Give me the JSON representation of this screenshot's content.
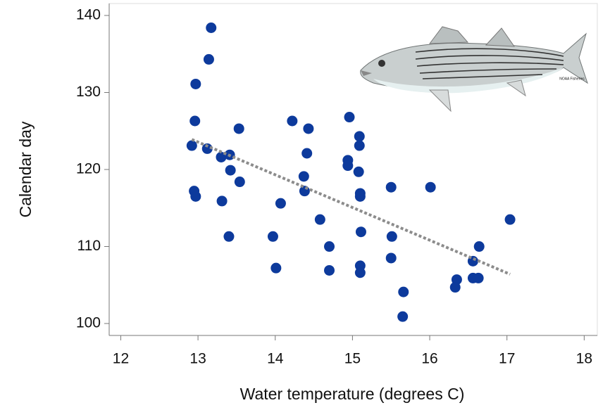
{
  "chart_data": {
    "type": "scatter",
    "x_label": "Water temperature (degrees C)",
    "y_label": "Calendar day",
    "image_credit": "NOAA Fisheries",
    "xlim": [
      11.85,
      18.17
    ],
    "ylim": [
      98.45,
      141.55
    ],
    "xticks": [
      12,
      13,
      14,
      15,
      16,
      17,
      18
    ],
    "yticks": [
      100,
      110,
      120,
      130,
      140
    ],
    "color": "#0d3a9c",
    "x": [
      13.17,
      13.14,
      12.97,
      12.96,
      12.92,
      13.12,
      13.3,
      13.41,
      13.42,
      13.54,
      13.53,
      12.95,
      12.97,
      13.31,
      13.4,
      13.97,
      14.01,
      14.07,
      14.22,
      14.43,
      14.41,
      14.37,
      14.38,
      14.58,
      14.7,
      14.7,
      14.96,
      14.94,
      14.94,
      15.09,
      15.09,
      15.08,
      15.1,
      15.1,
      15.11,
      15.1,
      15.1,
      15.5,
      15.51,
      15.5,
      15.66,
      15.65,
      16.01,
      16.35,
      16.33,
      16.56,
      16.56,
      16.63,
      16.64,
      17.04
    ],
    "values": [
      138.4,
      134.3,
      131.1,
      126.3,
      123.1,
      122.7,
      121.6,
      121.9,
      119.9,
      118.4,
      125.3,
      117.2,
      116.5,
      115.9,
      111.3,
      111.3,
      107.2,
      115.6,
      126.3,
      125.3,
      122.1,
      119.1,
      117.2,
      113.5,
      110.0,
      106.9,
      126.8,
      121.2,
      120.5,
      124.3,
      123.1,
      119.7,
      116.9,
      116.5,
      111.9,
      107.5,
      106.6,
      117.7,
      111.3,
      108.5,
      104.1,
      100.9,
      117.7,
      105.7,
      104.7,
      108.1,
      105.9,
      105.9,
      110.0,
      113.5
    ],
    "trendline": {
      "color": "#8c8c8c",
      "x": [
        12.92,
        17.04
      ],
      "values": [
        123.9,
        106.4
      ]
    }
  }
}
